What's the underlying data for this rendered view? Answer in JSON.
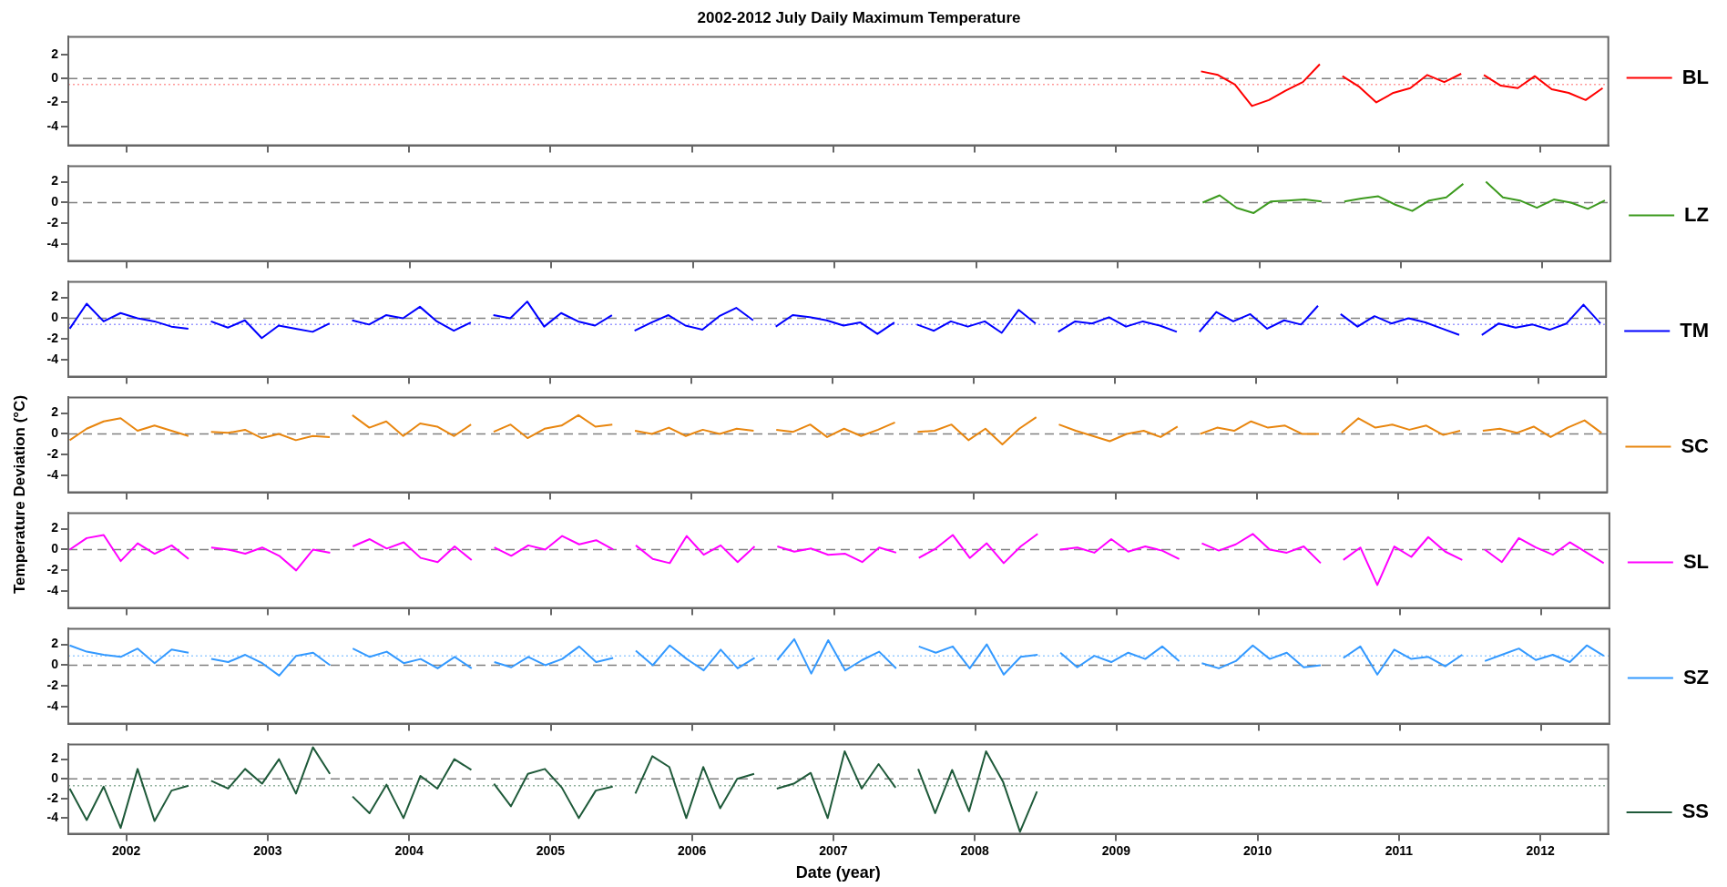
{
  "chart_data": [
    {
      "type": "line",
      "title": "2002-2012 July Daily Maximum Temperature",
      "series": [
        {
          "name": "BL",
          "color": "#ff0000",
          "x": [
            2009.6,
            2009.72,
            2009.84,
            2009.96,
            2010.08,
            2010.2,
            2010.32,
            2010.44,
            2010.5,
            2010.6,
            2010.72,
            2010.84,
            2010.96,
            2011.08,
            2011.2,
            2011.32,
            2011.44,
            2011.5,
            2011.6,
            2011.72,
            2011.84,
            2011.96,
            2012.08,
            2012.2,
            2012.32,
            2012.44
          ],
          "values": [
            0.6,
            0.3,
            -0.5,
            -2.3,
            -1.8,
            -1.0,
            -0.3,
            1.2,
            null,
            0.2,
            -0.7,
            -2.0,
            -1.2,
            -0.8,
            0.3,
            -0.3,
            0.4,
            null,
            0.3,
            -0.6,
            -0.8,
            0.2,
            -0.9,
            -1.2,
            -1.8,
            -0.8
          ]
        }
      ],
      "xlim": [
        2001.59,
        2012.48
      ],
      "xticks": [
        2002,
        2003,
        2004,
        2005,
        2006,
        2007,
        2008,
        2009,
        2010,
        2011,
        2012
      ],
      "ylim": [
        -5.6,
        3.5
      ],
      "yticks": [
        2,
        0,
        -2,
        -4
      ],
      "tick_labels": "y",
      "grid": false,
      "legend": "right",
      "marker": "none",
      "line_style": "solid",
      "ref_lines": [
        {
          "axis": "y",
          "value": 0,
          "color": "#808080",
          "line_style": "dashed"
        },
        {
          "axis": "y",
          "value": -0.5,
          "color": "#ff9999",
          "line_style": "dotted"
        }
      ]
    },
    {
      "type": "line",
      "series": [
        {
          "name": "LZ",
          "color": "#3c9a1e",
          "x": [
            2009.6,
            2009.72,
            2009.84,
            2009.96,
            2010.08,
            2010.2,
            2010.32,
            2010.44,
            2010.5,
            2010.6,
            2010.72,
            2010.84,
            2010.96,
            2011.08,
            2011.2,
            2011.32,
            2011.44,
            2011.5,
            2011.6,
            2011.72,
            2011.84,
            2011.96,
            2012.08,
            2012.2,
            2012.32,
            2012.44
          ],
          "values": [
            0.0,
            0.7,
            -0.5,
            -1.0,
            0.1,
            0.2,
            0.3,
            0.1,
            null,
            0.1,
            0.4,
            0.6,
            -0.2,
            -0.8,
            0.2,
            0.5,
            1.8,
            null,
            2.0,
            0.5,
            0.2,
            -0.5,
            0.3,
            0.0,
            -0.6,
            0.2
          ]
        }
      ],
      "xlim": [
        2001.59,
        2012.48
      ],
      "xticks": [
        2002,
        2003,
        2004,
        2005,
        2006,
        2007,
        2008,
        2009,
        2010,
        2011,
        2012
      ],
      "ylim": [
        -5.6,
        3.5
      ],
      "yticks": [
        2,
        0,
        -2,
        -4
      ],
      "tick_labels": "y",
      "grid": false,
      "legend": "right",
      "marker": "none",
      "line_style": "solid",
      "ref_lines": [
        {
          "axis": "y",
          "value": 0,
          "color": "#808080",
          "line_style": "dashed"
        }
      ]
    },
    {
      "type": "line",
      "x": [
        2001.6,
        2001.72,
        2001.84,
        2001.96,
        2002.08,
        2002.2,
        2002.32,
        2002.44,
        2002.5,
        2002.6,
        2002.72,
        2002.84,
        2002.96,
        2003.08,
        2003.2,
        2003.32,
        2003.44,
        2003.5,
        2003.6,
        2003.72,
        2003.84,
        2003.96,
        2004.08,
        2004.2,
        2004.32,
        2004.44,
        2004.5,
        2004.6,
        2004.72,
        2004.84,
        2004.96,
        2005.08,
        2005.2,
        2005.32,
        2005.44,
        2005.5,
        2005.6,
        2005.72,
        2005.84,
        2005.96,
        2006.08,
        2006.2,
        2006.32,
        2006.44,
        2006.5,
        2006.6,
        2006.72,
        2006.84,
        2006.96,
        2007.08,
        2007.2,
        2007.32,
        2007.44,
        2007.5,
        2007.6,
        2007.72,
        2007.84,
        2007.96,
        2008.08,
        2008.2,
        2008.32,
        2008.44,
        2008.5,
        2008.6,
        2008.72,
        2008.84,
        2008.96,
        2009.08,
        2009.2,
        2009.32,
        2009.44,
        2009.5,
        2009.6,
        2009.72,
        2009.84,
        2009.96,
        2010.08,
        2010.2,
        2010.32,
        2010.44,
        2010.5,
        2010.6,
        2010.72,
        2010.84,
        2010.96,
        2011.08,
        2011.2,
        2011.32,
        2011.44,
        2011.5,
        2011.6,
        2011.72,
        2011.84,
        2011.96,
        2012.08,
        2012.2,
        2012.32,
        2012.44
      ],
      "series": [
        {
          "name": "TM",
          "color": "#0000ff",
          "values": [
            -1.0,
            1.4,
            -0.3,
            0.5,
            0.0,
            -0.3,
            -0.8,
            -1.0,
            null,
            -0.3,
            -0.9,
            -0.2,
            -1.9,
            -0.7,
            -1.0,
            -1.3,
            -0.5,
            null,
            -0.2,
            -0.6,
            0.3,
            0.0,
            1.1,
            -0.3,
            -1.2,
            -0.4,
            null,
            0.3,
            0.0,
            1.6,
            -0.8,
            0.5,
            -0.3,
            -0.7,
            0.3,
            null,
            -1.2,
            -0.4,
            0.3,
            -0.7,
            -1.1,
            0.2,
            1.0,
            -0.2,
            null,
            -0.8,
            0.3,
            0.1,
            -0.2,
            -0.7,
            -0.4,
            -1.5,
            -0.4,
            null,
            -0.6,
            -1.2,
            -0.3,
            -0.8,
            -0.3,
            -1.4,
            0.8,
            -0.5,
            null,
            -1.3,
            -0.3,
            -0.5,
            0.1,
            -0.8,
            -0.3,
            -0.7,
            -1.3,
            null,
            -1.3,
            0.6,
            -0.3,
            0.4,
            -1.0,
            -0.2,
            -0.6,
            1.2,
            null,
            0.4,
            -0.8,
            0.2,
            -0.5,
            0.0,
            -0.4,
            -1.0,
            -1.6,
            null,
            -1.6,
            -0.5,
            -0.9,
            -0.6,
            -1.1,
            -0.5,
            1.3,
            -0.5
          ]
        }
      ],
      "xlim": [
        2001.59,
        2012.48
      ],
      "xticks": [
        2002,
        2003,
        2004,
        2005,
        2006,
        2007,
        2008,
        2009,
        2010,
        2011,
        2012
      ],
      "ylim": [
        -5.6,
        3.5
      ],
      "yticks": [
        2,
        0,
        -2,
        -4
      ],
      "tick_labels": "y",
      "grid": false,
      "legend": "right",
      "marker": "none",
      "line_style": "solid",
      "ref_lines": [
        {
          "axis": "y",
          "value": 0,
          "color": "#808080",
          "line_style": "dashed"
        },
        {
          "axis": "y",
          "value": -0.6,
          "color": "#9999ff",
          "line_style": "dotted"
        }
      ]
    },
    {
      "type": "line",
      "ylabel": "Temperature Deviation (°C)",
      "x": [
        2001.6,
        2001.72,
        2001.84,
        2001.96,
        2002.08,
        2002.2,
        2002.32,
        2002.44,
        2002.5,
        2002.6,
        2002.72,
        2002.84,
        2002.96,
        2003.08,
        2003.2,
        2003.32,
        2003.44,
        2003.5,
        2003.6,
        2003.72,
        2003.84,
        2003.96,
        2004.08,
        2004.2,
        2004.32,
        2004.44,
        2004.5,
        2004.6,
        2004.72,
        2004.84,
        2004.96,
        2005.08,
        2005.2,
        2005.32,
        2005.44,
        2005.5,
        2005.6,
        2005.72,
        2005.84,
        2005.96,
        2006.08,
        2006.2,
        2006.32,
        2006.44,
        2006.5,
        2006.6,
        2006.72,
        2006.84,
        2006.96,
        2007.08,
        2007.2,
        2007.32,
        2007.44,
        2007.5,
        2007.6,
        2007.72,
        2007.84,
        2007.96,
        2008.08,
        2008.2,
        2008.32,
        2008.44,
        2008.5,
        2008.6,
        2008.72,
        2008.84,
        2008.96,
        2009.08,
        2009.2,
        2009.32,
        2009.44,
        2009.5,
        2009.6,
        2009.72,
        2009.84,
        2009.96,
        2010.08,
        2010.2,
        2010.32,
        2010.44,
        2010.5,
        2010.6,
        2010.72,
        2010.84,
        2010.96,
        2011.08,
        2011.2,
        2011.32,
        2011.44,
        2011.5,
        2011.6,
        2011.72,
        2011.84,
        2011.96,
        2012.08,
        2012.2,
        2012.32,
        2012.44
      ],
      "series": [
        {
          "name": "SC",
          "color": "#e8860f",
          "values": [
            -0.6,
            0.5,
            1.2,
            1.5,
            0.3,
            0.8,
            0.3,
            -0.2,
            null,
            0.2,
            0.1,
            0.4,
            -0.4,
            0.0,
            -0.6,
            -0.2,
            -0.3,
            null,
            1.8,
            0.6,
            1.2,
            -0.2,
            1.0,
            0.7,
            -0.2,
            0.9,
            null,
            0.2,
            0.9,
            -0.4,
            0.5,
            0.8,
            1.8,
            0.7,
            0.9,
            null,
            0.3,
            0.0,
            0.6,
            -0.2,
            0.4,
            0.0,
            0.5,
            0.3,
            null,
            0.4,
            0.2,
            0.9,
            -0.3,
            0.5,
            -0.2,
            0.4,
            1.1,
            null,
            0.2,
            0.3,
            0.9,
            -0.6,
            0.5,
            -1.0,
            0.5,
            1.6,
            null,
            0.9,
            0.3,
            -0.2,
            -0.7,
            0.0,
            0.3,
            -0.3,
            0.7,
            null,
            0.0,
            0.6,
            0.3,
            1.2,
            0.6,
            0.8,
            0.0,
            0.0,
            null,
            0.1,
            1.5,
            0.6,
            0.9,
            0.4,
            0.8,
            -0.1,
            0.3,
            null,
            0.3,
            0.5,
            0.1,
            0.7,
            -0.3,
            0.6,
            1.3,
            0.1
          ]
        }
      ],
      "xlim": [
        2001.59,
        2012.48
      ],
      "xticks": [
        2002,
        2003,
        2004,
        2005,
        2006,
        2007,
        2008,
        2009,
        2010,
        2011,
        2012
      ],
      "ylim": [
        -5.6,
        3.5
      ],
      "yticks": [
        2,
        0,
        -2,
        -4
      ],
      "tick_labels": "y",
      "grid": false,
      "legend": "right",
      "marker": "none",
      "line_style": "solid",
      "ref_lines": [
        {
          "axis": "y",
          "value": 0,
          "color": "#808080",
          "line_style": "dashed"
        }
      ]
    },
    {
      "type": "line",
      "x": [
        2001.6,
        2001.72,
        2001.84,
        2001.96,
        2002.08,
        2002.2,
        2002.32,
        2002.44,
        2002.5,
        2002.6,
        2002.72,
        2002.84,
        2002.96,
        2003.08,
        2003.2,
        2003.32,
        2003.44,
        2003.5,
        2003.6,
        2003.72,
        2003.84,
        2003.96,
        2004.08,
        2004.2,
        2004.32,
        2004.44,
        2004.5,
        2004.6,
        2004.72,
        2004.84,
        2004.96,
        2005.08,
        2005.2,
        2005.32,
        2005.44,
        2005.5,
        2005.6,
        2005.72,
        2005.84,
        2005.96,
        2006.08,
        2006.2,
        2006.32,
        2006.44,
        2006.5,
        2006.6,
        2006.72,
        2006.84,
        2006.96,
        2007.08,
        2007.2,
        2007.32,
        2007.44,
        2007.5,
        2007.6,
        2007.72,
        2007.84,
        2007.96,
        2008.08,
        2008.2,
        2008.32,
        2008.44,
        2008.5,
        2008.6,
        2008.72,
        2008.84,
        2008.96,
        2009.08,
        2009.2,
        2009.32,
        2009.44,
        2009.5,
        2009.6,
        2009.72,
        2009.84,
        2009.96,
        2010.08,
        2010.2,
        2010.32,
        2010.44,
        2010.5,
        2010.6,
        2010.72,
        2010.84,
        2010.96,
        2011.08,
        2011.2,
        2011.32,
        2011.44,
        2011.5,
        2011.6,
        2011.72,
        2011.84,
        2011.96,
        2012.08,
        2012.2,
        2012.32,
        2012.44
      ],
      "series": [
        {
          "name": "SL",
          "color": "#ff00ff",
          "values": [
            0.0,
            1.1,
            1.4,
            -1.1,
            0.6,
            -0.4,
            0.4,
            -0.9,
            null,
            0.2,
            0.0,
            -0.4,
            0.2,
            -0.6,
            -2.0,
            0.0,
            -0.3,
            null,
            0.3,
            1.0,
            0.1,
            0.7,
            -0.8,
            -1.2,
            0.3,
            -1.0,
            null,
            0.2,
            -0.6,
            0.4,
            0.0,
            1.3,
            0.5,
            0.9,
            0.0,
            null,
            0.4,
            -0.9,
            -1.3,
            1.3,
            -0.5,
            0.4,
            -1.2,
            0.3,
            null,
            0.3,
            -0.2,
            0.1,
            -0.5,
            -0.4,
            -1.2,
            0.2,
            -0.3,
            null,
            -0.8,
            0.1,
            1.4,
            -0.8,
            0.6,
            -1.3,
            0.3,
            1.5,
            null,
            0.0,
            0.2,
            -0.3,
            1.0,
            -0.2,
            0.3,
            -0.1,
            -0.9,
            null,
            0.6,
            -0.1,
            0.5,
            1.5,
            0.0,
            -0.3,
            0.3,
            -1.3,
            null,
            -1.0,
            0.2,
            -3.4,
            0.3,
            -0.7,
            1.2,
            -0.2,
            -1.0,
            null,
            0.0,
            -1.2,
            1.1,
            0.2,
            -0.5,
            0.7,
            -0.3,
            -1.3
          ]
        }
      ],
      "xlim": [
        2001.59,
        2012.48
      ],
      "xticks": [
        2002,
        2003,
        2004,
        2005,
        2006,
        2007,
        2008,
        2009,
        2010,
        2011,
        2012
      ],
      "ylim": [
        -5.6,
        3.5
      ],
      "yticks": [
        2,
        0,
        -2,
        -4
      ],
      "tick_labels": "y",
      "grid": false,
      "legend": "right",
      "marker": "none",
      "line_style": "solid",
      "ref_lines": [
        {
          "axis": "y",
          "value": 0,
          "color": "#808080",
          "line_style": "dashed"
        }
      ]
    },
    {
      "type": "line",
      "x": [
        2001.6,
        2001.72,
        2001.84,
        2001.96,
        2002.08,
        2002.2,
        2002.32,
        2002.44,
        2002.5,
        2002.6,
        2002.72,
        2002.84,
        2002.96,
        2003.08,
        2003.2,
        2003.32,
        2003.44,
        2003.5,
        2003.6,
        2003.72,
        2003.84,
        2003.96,
        2004.08,
        2004.2,
        2004.32,
        2004.44,
        2004.5,
        2004.6,
        2004.72,
        2004.84,
        2004.96,
        2005.08,
        2005.2,
        2005.32,
        2005.44,
        2005.5,
        2005.6,
        2005.72,
        2005.84,
        2005.96,
        2006.08,
        2006.2,
        2006.32,
        2006.44,
        2006.5,
        2006.6,
        2006.72,
        2006.84,
        2006.96,
        2007.08,
        2007.2,
        2007.32,
        2007.44,
        2007.5,
        2007.6,
        2007.72,
        2007.84,
        2007.96,
        2008.08,
        2008.2,
        2008.32,
        2008.44,
        2008.5,
        2008.6,
        2008.72,
        2008.84,
        2008.96,
        2009.08,
        2009.2,
        2009.32,
        2009.44,
        2009.5,
        2009.6,
        2009.72,
        2009.84,
        2009.96,
        2010.08,
        2010.2,
        2010.32,
        2010.44,
        2010.5,
        2010.6,
        2010.72,
        2010.84,
        2010.96,
        2011.08,
        2011.2,
        2011.32,
        2011.44,
        2011.5,
        2011.6,
        2011.72,
        2011.84,
        2011.96,
        2012.08,
        2012.2,
        2012.32,
        2012.44
      ],
      "series": [
        {
          "name": "SZ",
          "color": "#3399ff",
          "values": [
            1.9,
            1.3,
            1.0,
            0.8,
            1.6,
            0.2,
            1.5,
            1.2,
            null,
            0.6,
            0.3,
            1.0,
            0.2,
            -1.0,
            0.9,
            1.2,
            0.0,
            null,
            1.6,
            0.8,
            1.3,
            0.2,
            0.6,
            -0.3,
            0.8,
            -0.3,
            null,
            0.3,
            -0.2,
            0.8,
            0.0,
            0.6,
            1.8,
            0.3,
            0.7,
            null,
            1.4,
            0.0,
            1.9,
            0.6,
            -0.5,
            1.5,
            -0.3,
            0.7,
            null,
            0.5,
            2.5,
            -0.8,
            2.4,
            -0.5,
            0.5,
            1.3,
            -0.3,
            null,
            1.8,
            1.2,
            1.8,
            -0.3,
            2.0,
            -0.9,
            0.8,
            1.0,
            null,
            1.2,
            -0.2,
            0.9,
            0.3,
            1.2,
            0.6,
            1.8,
            0.4,
            null,
            0.2,
            -0.3,
            0.4,
            1.9,
            0.6,
            1.2,
            -0.2,
            0.0,
            null,
            0.7,
            1.8,
            -0.9,
            1.5,
            0.6,
            0.8,
            -0.1,
            1.0,
            null,
            0.4,
            1.0,
            1.6,
            0.5,
            1.0,
            0.3,
            1.9,
            0.9
          ]
        }
      ],
      "xlim": [
        2001.59,
        2012.48
      ],
      "xticks": [
        2002,
        2003,
        2004,
        2005,
        2006,
        2007,
        2008,
        2009,
        2010,
        2011,
        2012
      ],
      "ylim": [
        -5.6,
        3.5
      ],
      "yticks": [
        2,
        0,
        -2,
        -4
      ],
      "tick_labels": "y",
      "grid": false,
      "legend": "right",
      "marker": "none",
      "line_style": "solid",
      "ref_lines": [
        {
          "axis": "y",
          "value": 0,
          "color": "#808080",
          "line_style": "dashed"
        },
        {
          "axis": "y",
          "value": 0.9,
          "color": "#99ccff",
          "line_style": "dotted"
        }
      ]
    },
    {
      "type": "line",
      "xlabel": "Date (year)",
      "x": [
        2001.6,
        2001.72,
        2001.84,
        2001.96,
        2002.08,
        2002.2,
        2002.32,
        2002.44,
        2002.5,
        2002.6,
        2002.72,
        2002.84,
        2002.96,
        2003.08,
        2003.2,
        2003.32,
        2003.44,
        2003.5,
        2003.6,
        2003.72,
        2003.84,
        2003.96,
        2004.08,
        2004.2,
        2004.32,
        2004.44,
        2004.5,
        2004.6,
        2004.72,
        2004.84,
        2004.96,
        2005.08,
        2005.2,
        2005.32,
        2005.44,
        2005.5,
        2005.6,
        2005.72,
        2005.84,
        2005.96,
        2006.08,
        2006.2,
        2006.32,
        2006.44,
        2006.5,
        2006.6,
        2006.72,
        2006.84,
        2006.96,
        2007.08,
        2007.2,
        2007.32,
        2007.44,
        2007.5,
        2007.6,
        2007.72,
        2007.84,
        2007.96,
        2008.08,
        2008.2,
        2008.32,
        2008.44
      ],
      "series": [
        {
          "name": "SS",
          "color": "#1f5a3a",
          "values": [
            -1.0,
            -4.2,
            -0.8,
            -5.0,
            1.0,
            -4.3,
            -1.2,
            -0.7,
            null,
            -0.2,
            -1.0,
            1.0,
            -0.5,
            2.0,
            -1.5,
            3.2,
            0.5,
            null,
            -1.8,
            -3.5,
            -0.6,
            -4.0,
            0.3,
            -1.0,
            2.0,
            0.9,
            null,
            -0.5,
            -2.8,
            0.5,
            1.0,
            -0.9,
            -4.0,
            -1.2,
            -0.8,
            null,
            -1.5,
            2.3,
            1.2,
            -4.0,
            1.2,
            -3.0,
            0.0,
            0.5,
            null,
            -1.0,
            -0.5,
            0.6,
            -4.0,
            2.8,
            -1.0,
            1.5,
            -0.9,
            null,
            1.0,
            -3.5,
            0.9,
            -3.3,
            2.8,
            -0.3,
            -5.4,
            -1.3
          ]
        }
      ],
      "xlim": [
        2001.59,
        2012.48
      ],
      "xticks": [
        2002,
        2003,
        2004,
        2005,
        2006,
        2007,
        2008,
        2009,
        2010,
        2011,
        2012
      ],
      "ylim": [
        -5.6,
        3.5
      ],
      "yticks": [
        2,
        0,
        -2,
        -4
      ],
      "grid": false,
      "legend": "right",
      "marker": "none",
      "line_style": "solid",
      "ref_lines": [
        {
          "axis": "y",
          "value": 0,
          "color": "#808080",
          "line_style": "dashed"
        },
        {
          "axis": "y",
          "value": -0.7,
          "color": "#8fb09c",
          "line_style": "dotted"
        }
      ]
    }
  ]
}
